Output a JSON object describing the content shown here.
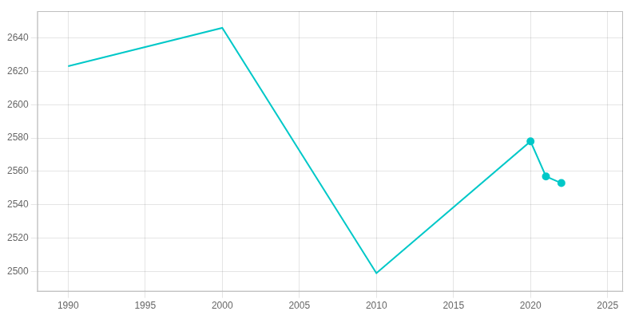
{
  "chart_data": {
    "type": "line",
    "series": [
      {
        "x": [
          1990,
          2000,
          2010,
          2020,
          2021,
          2022
        ],
        "values": [
          2623,
          2646,
          2499,
          2578,
          2557,
          2553
        ],
        "color": "#00C8C8",
        "line_style": "solid"
      },
      {
        "x": [
          2020,
          2021,
          2022
        ],
        "values": [
          2578,
          2557,
          2553
        ],
        "color": "#00C8C8",
        "line_style": "none",
        "marker": "circle"
      }
    ],
    "xlim": [
      1988,
      2026
    ],
    "ylim": [
      2488,
      2656
    ],
    "xticks": [
      1990,
      1995,
      2000,
      2005,
      2010,
      2015,
      2020,
      2025
    ],
    "yticks": [
      2500,
      2520,
      2540,
      2560,
      2580,
      2600,
      2620,
      2640
    ],
    "grid": true
  }
}
